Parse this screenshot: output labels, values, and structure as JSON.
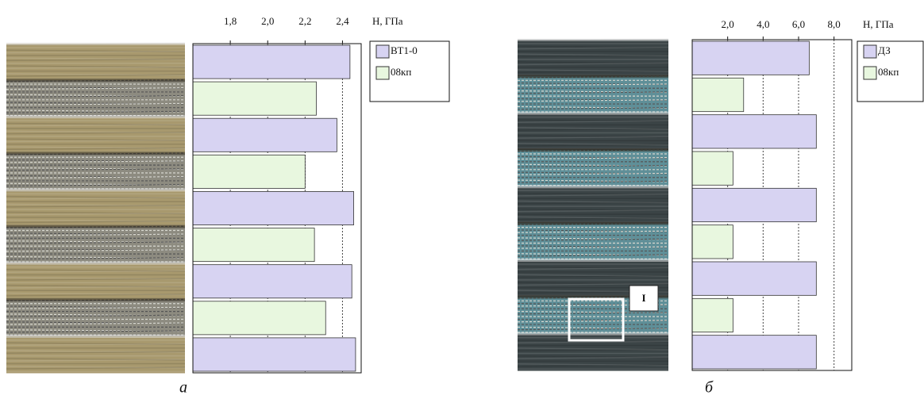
{
  "chart_data": [
    {
      "type": "bar",
      "orientation": "horizontal",
      "x_label": "H, ГПа",
      "caption": "а",
      "categories": [
        null,
        null,
        null,
        null,
        null,
        null,
        null,
        null,
        null
      ],
      "series": [
        {
          "name": "ВТ1-0",
          "color": "#d7d3f2",
          "values": [
            2.44,
            null,
            2.37,
            null,
            2.46,
            null,
            2.45,
            null,
            2.47
          ]
        },
        {
          "name": "08кп",
          "color": "#e8f7df",
          "values": [
            null,
            2.26,
            null,
            2.2,
            null,
            2.25,
            null,
            2.31,
            null
          ]
        }
      ],
      "xlim": [
        1.6,
        2.5
      ],
      "xticks": [
        {
          "value": 1.8,
          "label": "1,8"
        },
        {
          "value": 2.0,
          "label": "2,0"
        },
        {
          "value": 2.2,
          "label": "2,2"
        },
        {
          "value": 2.4,
          "label": "2,4"
        }
      ],
      "grid": true,
      "legend": "right"
    },
    {
      "type": "bar",
      "orientation": "horizontal",
      "x_label": "H, ГПа",
      "caption": "б",
      "annotation": "I",
      "categories": [
        null,
        null,
        null,
        null,
        null,
        null,
        null,
        null,
        null
      ],
      "series": [
        {
          "name": "ДЗ",
          "color": "#d7d3f2",
          "values": [
            6.6,
            null,
            7.0,
            null,
            7.0,
            null,
            7.0,
            null,
            7.0
          ]
        },
        {
          "name": "08кп",
          "color": "#e8f7df",
          "values": [
            null,
            2.9,
            null,
            2.3,
            null,
            2.3,
            null,
            2.3,
            null
          ]
        }
      ],
      "xlim": [
        0,
        9
      ],
      "xticks": [
        {
          "value": 2.0,
          "label": "2,0"
        },
        {
          "value": 4.0,
          "label": "4,0"
        },
        {
          "value": 6.0,
          "label": "6,0"
        },
        {
          "value": 8.0,
          "label": "8,0"
        }
      ],
      "grid": true,
      "legend": "right"
    }
  ]
}
